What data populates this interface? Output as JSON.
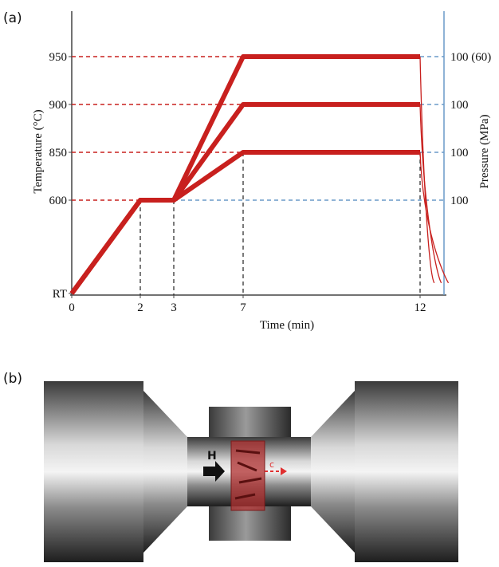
{
  "chart_data": {
    "type": "line",
    "panel_label": "(a)",
    "x_label": "Time (min)",
    "y_label": "Temperature (°C)",
    "y2_label": "Pressure (MPa)",
    "xlim": [
      0,
      12.6
    ],
    "xticks": [
      0,
      2,
      3,
      7,
      12
    ],
    "ylim": [
      25,
      1000
    ],
    "yticks": [
      {
        "value": 25,
        "label": "RT"
      },
      600,
      850,
      900,
      950
    ],
    "right_labels": [
      {
        "value": 950,
        "label": "100 (60)"
      },
      {
        "value": 900,
        "label": "100"
      },
      {
        "value": 850,
        "label": "100"
      },
      {
        "value": 600,
        "label": "100"
      }
    ],
    "series": [
      {
        "color": "#c8201e",
        "x": [
          0,
          2,
          3,
          7,
          12,
          12.4
        ],
        "values": [
          25,
          600,
          600,
          950,
          950,
          90
        ]
      },
      {
        "color": "#c8201e",
        "x": [
          0,
          2,
          3,
          7,
          12,
          12.6
        ],
        "values": [
          25,
          600,
          600,
          900,
          900,
          90
        ]
      },
      {
        "color": "#c8201e",
        "x": [
          0,
          2,
          3,
          7,
          12,
          12.8
        ],
        "values": [
          25,
          600,
          600,
          850,
          850,
          90
        ]
      }
    ]
  },
  "diagram": {
    "panel_label": "(b)",
    "field_label": "H",
    "axis_label": "c"
  }
}
